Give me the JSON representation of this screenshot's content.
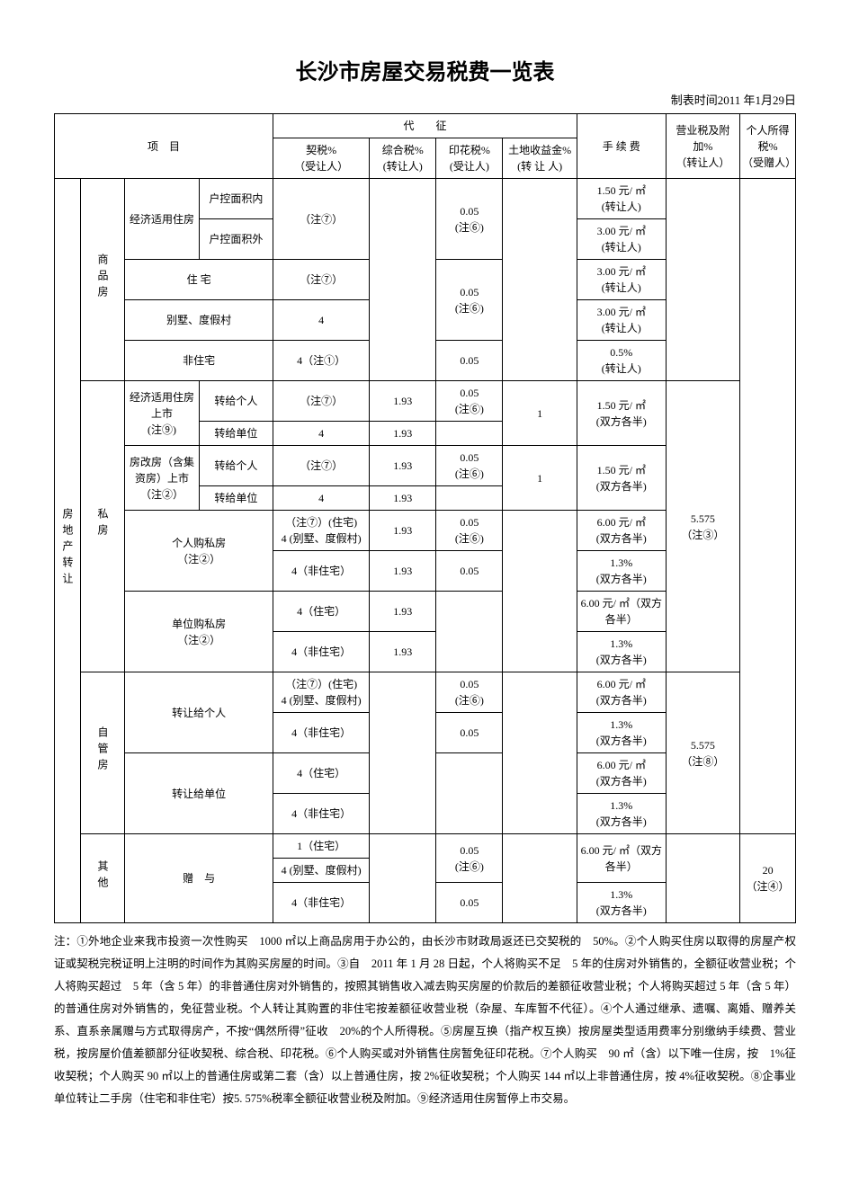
{
  "title": "长沙市房屋交易税费一览表",
  "date_label": "制表时间2011 年1月29日",
  "header": {
    "item": "项　目",
    "agent_group": "代　　征",
    "deed_tax": "契税%",
    "deed_tax_sub": "（受让人）",
    "comp_tax": "综合税%",
    "comp_tax_sub": "(转让人)",
    "stamp_tax": "印花税%",
    "stamp_tax_sub": "(受让人)",
    "land_gain": "土地收益金%",
    "land_gain_sub": "(转 让 人)",
    "fee": "手 续 费",
    "biz_tax": "营业税及附加%",
    "biz_tax_sub": "（转让人）",
    "personal_tax": "个人所得税%",
    "personal_tax_sub": "（受赠人）"
  },
  "left_root": "房地产转让",
  "sections": {
    "spf": "商品房",
    "sf": "私房",
    "zgf": "自管房",
    "qt": "其他"
  },
  "labels": {
    "jjsyf": "经济适用住房",
    "hknmj": "户控面积内",
    "hkwmj": "户控面积外",
    "zz": "住 宅",
    "bsdjc": "别墅、度假村",
    "fzz": "非住宅",
    "jjsyf_ss": "经济适用住房上市",
    "note9": "(注⑨)",
    "zrgr": "转给个人",
    "zrdw": "转给单位",
    "fgf": "房改房（含集资房）上市",
    "note2": "（注②）",
    "grgsf": "个人购私房",
    "dwgsf": "单位购私房",
    "zrggr": "转让给个人",
    "zrgdw": "转让给单位",
    "zy": "赠　与"
  },
  "vals": {
    "note7": "（注⑦）",
    "note7_zz": "（注⑦）(住宅)",
    "note1": "4（注①）",
    "bsdjc4": "4 (别墅、度假村)",
    "four": "4",
    "four_zz": "4（住宅）",
    "four_fzz": "4（非住宅）",
    "one_zz": "1（住宅）",
    "one93": "1.93",
    "p05": "0.05",
    "p05_n6": "0.05\n(注⑥)",
    "one": "1",
    "fee_150": "1.50 元/ ㎡\n(转让人)",
    "fee_300": "3.00 元/ ㎡\n(转让人)",
    "fee_05p": "0.5%\n(转让人)",
    "fee_150_both": "1.50 元/ ㎡\n(双方各半)",
    "fee_600_both": "6.00 元/ ㎡\n(双方各半)",
    "fee_600_both_oneline": "6.00 元/ ㎡（双方各半）",
    "fee_13p_both": "1.3%\n(双方各半)",
    "biz_5575_n3": "5.575\n（注③）",
    "biz_5575_n8": "5.575\n（注⑧）",
    "pit_20_n4": "20\n（注④）"
  },
  "notes_html": "注：①外地企业来我市投资一次性购买　1000 ㎡以上商品房用于办公的，由长沙市财政局返还已交契税的　50%。②个人购买住房以取得的房屋产权证或契税完税证明上注明的时间作为其购买房屋的时间。③自　2011 年 1 月 28 日起，个人将购买不足　5 年的住房对外销售的，全额征收营业税；个人将购买超过　5 年（含 5 年）的非普通住房对外销售的，按照其销售收入减去购买房屋的价款后的差额征收营业税；个人将购买超过 5 年（含 5 年）的普通住房对外销售的，免征营业税。个人转让其购置的非住宅按差额征收营业税（杂屋、车库暂不代征）。④个人通过继承、遗嘱、离婚、赠养关系、直系亲属赠与方式取得房产，不按“偶然所得”征收　20%的个人所得税。⑤房屋互换（指产权互换）按房屋类型适用费率分别缴纳手续费、营业税，按房屋价值差额部分征收契税、综合税、印花税。⑥个人购买或对外销售住房暂免征印花税。⑦个人购买　90 ㎡（含）以下唯一住房，按　1%征收契税；个人购买 90 ㎡以上的普通住房或第二套（含）以上普通住房，按 2%征收契税；个人购买 144 ㎡以上非普通住房，按 4%征收契税。⑧企事业单位转让二手房（住宅和非住宅）按5. 575%税率全额征收营业税及附加。⑨经济适用住房暂停上市交易。"
}
